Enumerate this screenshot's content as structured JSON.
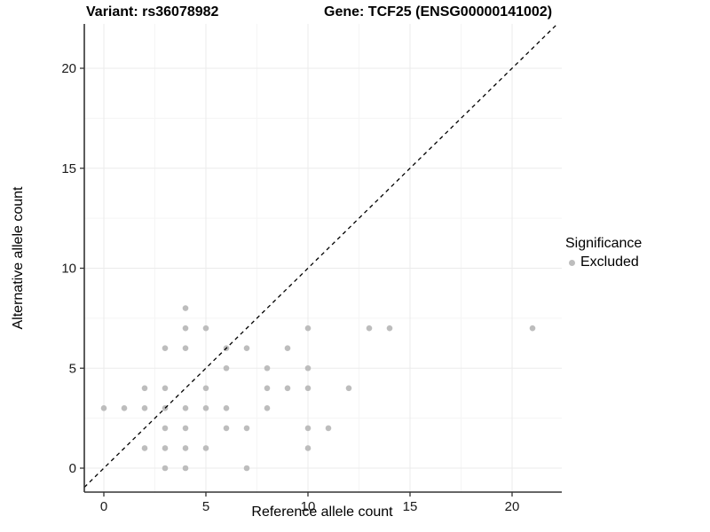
{
  "titles": {
    "variant": "Variant: rs36078982",
    "gene": "Gene: TCF25 (ENSG00000141002)"
  },
  "axes": {
    "x_label": "Reference allele count",
    "y_label": "Alternative allele count"
  },
  "legend": {
    "title": "Significance",
    "items": [
      {
        "label": "Excluded",
        "color": "#bdbdbd"
      }
    ]
  },
  "colors": {
    "point": "#bdbdbd",
    "grid_major": "#ebebeb",
    "grid_minor": "#f5f5f5",
    "axis_line": "#333333",
    "tick_label": "#1a1a1a",
    "dashed_line": "#000000"
  },
  "chart_data": {
    "type": "scatter",
    "title_left": "Variant: rs36078982",
    "title_right": "Gene: TCF25 (ENSG00000141002)",
    "xlabel": "Reference allele count",
    "ylabel": "Alternative allele count",
    "x_ticks": [
      0,
      5,
      10,
      15,
      20
    ],
    "y_ticks": [
      0,
      5,
      10,
      15,
      20
    ],
    "x_minor": [
      2.5,
      7.5,
      12.5,
      17.5
    ],
    "y_minor": [
      2.5,
      7.5,
      12.5,
      17.5
    ],
    "xlim": [
      -0.96,
      22.4
    ],
    "ylim": [
      -1.2,
      22.2
    ],
    "grid": true,
    "legend_position": "right",
    "identity_line": {
      "equation": "y = x",
      "style": "dashed",
      "color": "#000000"
    },
    "series": [
      {
        "name": "Excluded",
        "color": "#bdbdbd",
        "points": [
          [
            3,
            0
          ],
          [
            4,
            0
          ],
          [
            7,
            0
          ],
          [
            2,
            1
          ],
          [
            3,
            1
          ],
          [
            4,
            1
          ],
          [
            5,
            1
          ],
          [
            10,
            1
          ],
          [
            3,
            2
          ],
          [
            4,
            2
          ],
          [
            6,
            2
          ],
          [
            7,
            2
          ],
          [
            10,
            2
          ],
          [
            11,
            2
          ],
          [
            0,
            3
          ],
          [
            1,
            3
          ],
          [
            2,
            3
          ],
          [
            3,
            3
          ],
          [
            4,
            3
          ],
          [
            5,
            3
          ],
          [
            6,
            3
          ],
          [
            8,
            3
          ],
          [
            2,
            4
          ],
          [
            3,
            4
          ],
          [
            5,
            4
          ],
          [
            8,
            4
          ],
          [
            9,
            4
          ],
          [
            10,
            4
          ],
          [
            12,
            4
          ],
          [
            6,
            5
          ],
          [
            8,
            5
          ],
          [
            10,
            5
          ],
          [
            3,
            6
          ],
          [
            4,
            6
          ],
          [
            6,
            6
          ],
          [
            7,
            6
          ],
          [
            9,
            6
          ],
          [
            4,
            7
          ],
          [
            5,
            7
          ],
          [
            10,
            7
          ],
          [
            13,
            7
          ],
          [
            14,
            7
          ],
          [
            21,
            7
          ],
          [
            4,
            8
          ]
        ]
      }
    ]
  }
}
